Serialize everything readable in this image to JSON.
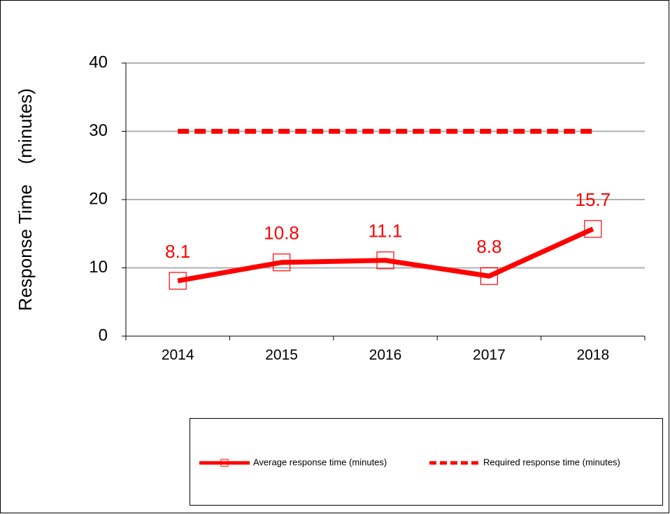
{
  "chart_data": {
    "type": "line",
    "ylabel": "Response Time    (minutes)",
    "categories": [
      "2014",
      "2015",
      "2016",
      "2017",
      "2018"
    ],
    "series": [
      {
        "name": "Average response time (minutes)",
        "color": "#ff0000",
        "line_style": "solid",
        "marker": "square",
        "values": [
          8.1,
          10.8,
          11.1,
          8.8,
          15.7
        ],
        "data_labels": true
      },
      {
        "name": "Required response time (minutes)",
        "color": "#ff0000",
        "line_style": "dashed",
        "values": [
          30,
          30,
          30,
          30,
          30
        ]
      }
    ],
    "ylim": [
      0,
      40
    ],
    "yticks": [
      0,
      10,
      20,
      30,
      40
    ],
    "grid": true,
    "legend": "bottom"
  }
}
